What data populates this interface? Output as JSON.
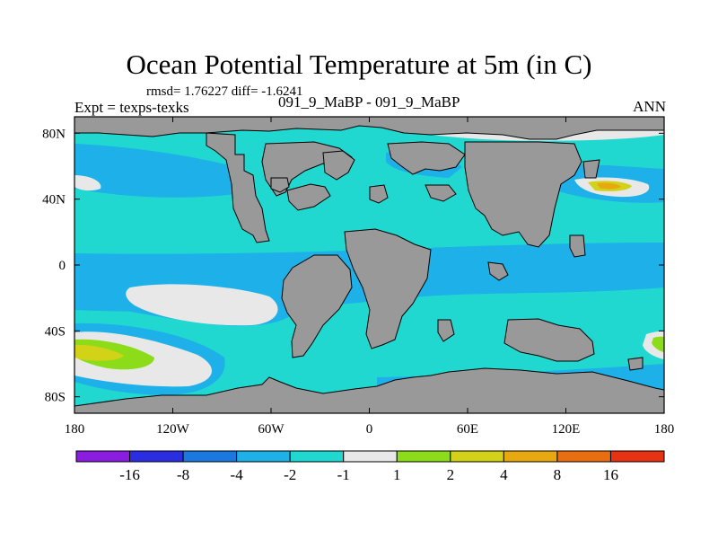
{
  "header": {
    "title": "Ocean Potential Temperature at 5m (in C)",
    "stats": "rmsd= 1.76227 diff= -1.6241",
    "experiment": "Expt = texps-texks",
    "runs": "091_9_MaBP - 091_9_MaBP",
    "season": "ANN"
  },
  "colors": {
    "land": "#999999",
    "neutral": "#e8e8e8",
    "light_neg": "#20d8d0",
    "mid_neg": "#1eb0e8"
  },
  "chart_data": {
    "type": "heatmap",
    "title": "Ocean Potential Temperature at 5m (in C)",
    "x_ticks": [
      {
        "value": -180,
        "label": "180"
      },
      {
        "value": -120,
        "label": "120W"
      },
      {
        "value": -60,
        "label": "60W"
      },
      {
        "value": 0,
        "label": "0"
      },
      {
        "value": 60,
        "label": "60E"
      },
      {
        "value": 120,
        "label": "120E"
      },
      {
        "value": 180,
        "label": "180"
      }
    ],
    "y_ticks": [
      {
        "value": 80,
        "label": "80N"
      },
      {
        "value": 40,
        "label": "40N"
      },
      {
        "value": 0,
        "label": "0"
      },
      {
        "value": -40,
        "label": "40S"
      },
      {
        "value": -80,
        "label": "80S"
      }
    ],
    "xlim": [
      -180,
      180
    ],
    "ylim": [
      -90,
      90
    ],
    "colorbar": {
      "colors": [
        "#8a1de0",
        "#2a2ee0",
        "#1a78e0",
        "#1eb0e8",
        "#20d8d0",
        "#e8e8e8",
        "#8cdc1a",
        "#d2d218",
        "#e8a810",
        "#e86e10",
        "#e83214"
      ],
      "labels": [
        "-16",
        "-8",
        "-4",
        "-2",
        "-1",
        "1",
        "2",
        "4",
        "8",
        "16"
      ]
    }
  }
}
